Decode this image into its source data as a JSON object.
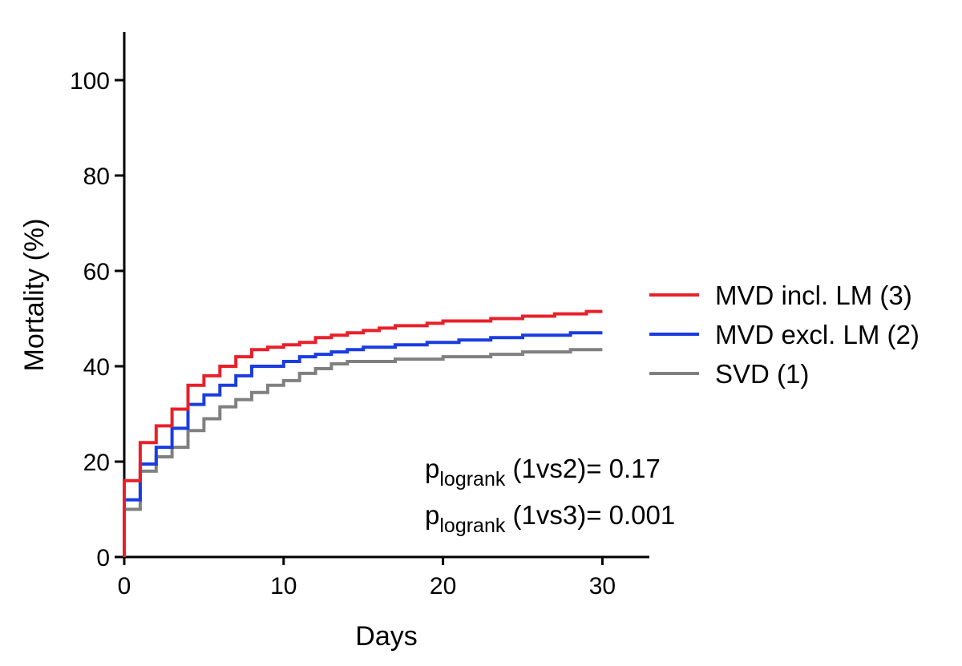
{
  "chart_data": {
    "type": "line",
    "step": true,
    "xlabel": "Days",
    "ylabel": "Mortality (%)",
    "xlim": [
      0,
      33
    ],
    "ylim": [
      0,
      110
    ],
    "xticks": [
      "0",
      "10",
      "20",
      "30"
    ],
    "yticks": [
      "0",
      "20",
      "40",
      "60",
      "80",
      "100"
    ],
    "legend_position": "right",
    "series": [
      {
        "name": "MVD incl. LM (3)",
        "color": "#e8202a",
        "points": [
          [
            0,
            0
          ],
          [
            0,
            16
          ],
          [
            1,
            16
          ],
          [
            1,
            24
          ],
          [
            2,
            24
          ],
          [
            2,
            27.5
          ],
          [
            3,
            27.5
          ],
          [
            3,
            31
          ],
          [
            4,
            31
          ],
          [
            4,
            36
          ],
          [
            5,
            36
          ],
          [
            5,
            38
          ],
          [
            6,
            38
          ],
          [
            6,
            40
          ],
          [
            7,
            40
          ],
          [
            7,
            42
          ],
          [
            8,
            42
          ],
          [
            8,
            43.5
          ],
          [
            9,
            43.5
          ],
          [
            9,
            44
          ],
          [
            10,
            44
          ],
          [
            10,
            44.5
          ],
          [
            11,
            44.5
          ],
          [
            11,
            45
          ],
          [
            12,
            45
          ],
          [
            12,
            46
          ],
          [
            13,
            46
          ],
          [
            13,
            46.5
          ],
          [
            14,
            46.5
          ],
          [
            14,
            47
          ],
          [
            15,
            47
          ],
          [
            15,
            47.5
          ],
          [
            16,
            47.5
          ],
          [
            16,
            48
          ],
          [
            17,
            48
          ],
          [
            17,
            48.5
          ],
          [
            19,
            48.5
          ],
          [
            19,
            49
          ],
          [
            20,
            49
          ],
          [
            20,
            49.5
          ],
          [
            23,
            49.5
          ],
          [
            23,
            50
          ],
          [
            25,
            50
          ],
          [
            25,
            50.5
          ],
          [
            27,
            50.5
          ],
          [
            27,
            51
          ],
          [
            29,
            51
          ],
          [
            29,
            51.5
          ],
          [
            30,
            51.5
          ]
        ]
      },
      {
        "name": "MVD excl. LM (2)",
        "color": "#1a3ce0",
        "points": [
          [
            0,
            0
          ],
          [
            0,
            12
          ],
          [
            1,
            12
          ],
          [
            1,
            19.5
          ],
          [
            2,
            19.5
          ],
          [
            2,
            23
          ],
          [
            3,
            23
          ],
          [
            3,
            27
          ],
          [
            4,
            27
          ],
          [
            4,
            32
          ],
          [
            5,
            32
          ],
          [
            5,
            34
          ],
          [
            6,
            34
          ],
          [
            6,
            36
          ],
          [
            7,
            36
          ],
          [
            7,
            38
          ],
          [
            8,
            38
          ],
          [
            8,
            40
          ],
          [
            10,
            40
          ],
          [
            10,
            41
          ],
          [
            11,
            41
          ],
          [
            11,
            42
          ],
          [
            12,
            42
          ],
          [
            12,
            42.5
          ],
          [
            13,
            42.5
          ],
          [
            13,
            43
          ],
          [
            14,
            43
          ],
          [
            14,
            43.5
          ],
          [
            15,
            43.5
          ],
          [
            15,
            44
          ],
          [
            17,
            44
          ],
          [
            17,
            44.5
          ],
          [
            19,
            44.5
          ],
          [
            19,
            45
          ],
          [
            21,
            45
          ],
          [
            21,
            45.5
          ],
          [
            23,
            45.5
          ],
          [
            23,
            46
          ],
          [
            25,
            46
          ],
          [
            25,
            46.5
          ],
          [
            28,
            46.5
          ],
          [
            28,
            47
          ],
          [
            30,
            47
          ]
        ]
      },
      {
        "name": "SVD (1)",
        "color": "#808080",
        "points": [
          [
            0,
            0
          ],
          [
            0,
            10
          ],
          [
            1,
            10
          ],
          [
            1,
            18
          ],
          [
            2,
            18
          ],
          [
            2,
            21
          ],
          [
            3,
            21
          ],
          [
            3,
            23
          ],
          [
            4,
            23
          ],
          [
            4,
            26.5
          ],
          [
            5,
            26.5
          ],
          [
            5,
            29
          ],
          [
            6,
            29
          ],
          [
            6,
            31.5
          ],
          [
            7,
            31.5
          ],
          [
            7,
            33
          ],
          [
            8,
            33
          ],
          [
            8,
            34.5
          ],
          [
            9,
            34.5
          ],
          [
            9,
            36
          ],
          [
            10,
            36
          ],
          [
            10,
            37
          ],
          [
            11,
            37
          ],
          [
            11,
            38.5
          ],
          [
            12,
            38.5
          ],
          [
            12,
            39.5
          ],
          [
            13,
            39.5
          ],
          [
            13,
            40.5
          ],
          [
            14,
            40.5
          ],
          [
            14,
            41
          ],
          [
            17,
            41
          ],
          [
            17,
            41.5
          ],
          [
            20,
            41.5
          ],
          [
            20,
            42
          ],
          [
            23,
            42
          ],
          [
            23,
            42.5
          ],
          [
            25,
            42.5
          ],
          [
            25,
            43
          ],
          [
            28,
            43
          ],
          [
            28,
            43.5
          ],
          [
            30,
            43.5
          ]
        ]
      }
    ],
    "annotations": [
      {
        "p": "p",
        "sub": "logrank",
        "rest": " (1vs2)= 0.17"
      },
      {
        "p": "p",
        "sub": "logrank",
        "rest": " (1vs3)= 0.001"
      }
    ]
  }
}
